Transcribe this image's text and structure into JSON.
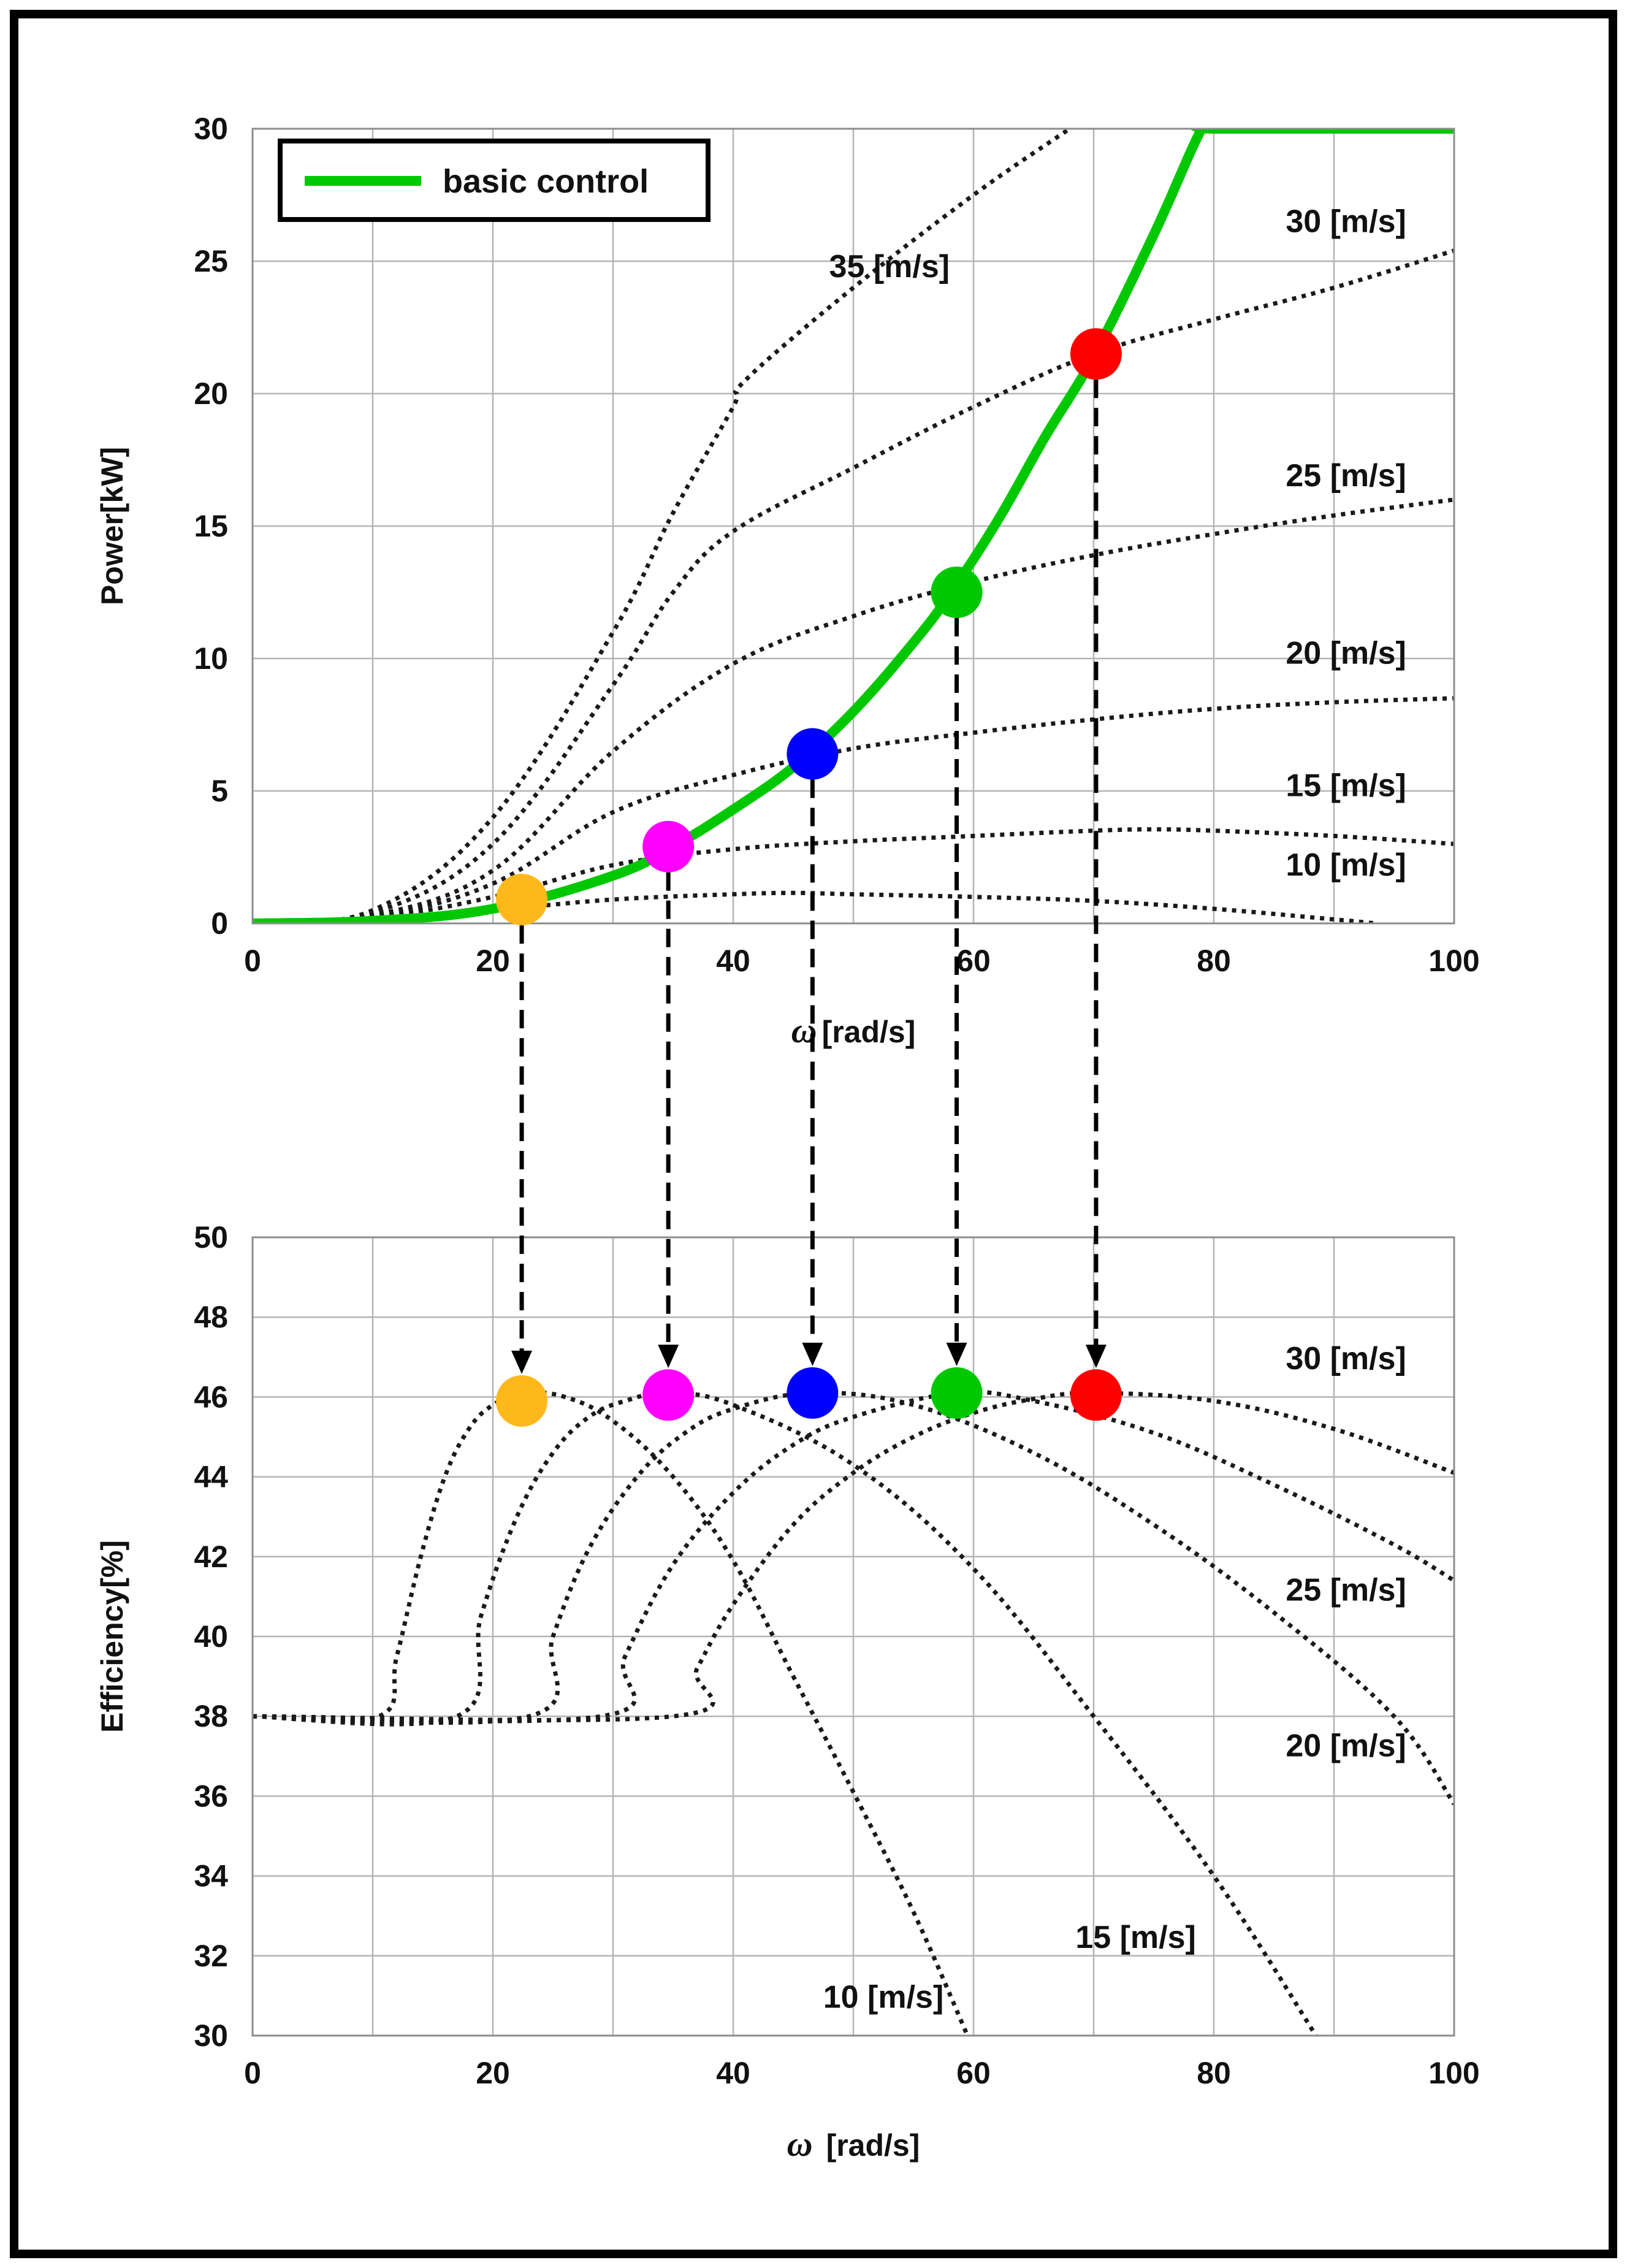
{
  "chart_data": [
    {
      "type": "line",
      "id": "power",
      "xlabel": "[rad/s]",
      "xlabel_symbol": "ω",
      "ylabel": "Power[kW]",
      "xlim": [
        0,
        100
      ],
      "ylim": [
        0,
        30
      ],
      "x_ticks": [
        "0",
        "20",
        "40",
        "60",
        "80",
        "100"
      ],
      "y_ticks": [
        "0",
        "5",
        "10",
        "15",
        "20",
        "25",
        "30"
      ],
      "legend": {
        "position": "top-left",
        "entries": [
          "basic control"
        ]
      },
      "series": [
        {
          "name": "basic control",
          "style": "solid",
          "color": "#00c800",
          "x": [
            0,
            10,
            20,
            30,
            35,
            40,
            45,
            50,
            55,
            58,
            62,
            66,
            70,
            75,
            79,
            80,
            100
          ],
          "y": [
            0,
            0.1,
            0.55,
            1.8,
            2.9,
            4.3,
            5.9,
            8.0,
            10.6,
            12.4,
            15.2,
            18.4,
            21.4,
            26,
            30,
            30,
            30
          ]
        },
        {
          "name": "10 [m/s]",
          "style": "dotted",
          "x": [
            0,
            10,
            20,
            30,
            40,
            45,
            50,
            60,
            70,
            80,
            90,
            93.5
          ],
          "y": [
            0,
            0.15,
            0.5,
            0.9,
            1.1,
            1.15,
            1.1,
            1.0,
            0.85,
            0.55,
            0.15,
            0
          ]
        },
        {
          "name": "15 [m/s]",
          "style": "dotted",
          "x": [
            0,
            10,
            20,
            30,
            40,
            50,
            60,
            70,
            75,
            80,
            90,
            100
          ],
          "y": [
            0,
            0.2,
            1.0,
            2.2,
            2.8,
            3.1,
            3.3,
            3.5,
            3.55,
            3.5,
            3.3,
            3.0
          ]
        },
        {
          "name": "20 [m/s]",
          "style": "dotted",
          "x": [
            0,
            10,
            20,
            30,
            40,
            50,
            60,
            70,
            80,
            90,
            100
          ],
          "y": [
            0,
            0.25,
            1.5,
            4.2,
            5.6,
            6.6,
            7.2,
            7.7,
            8.1,
            8.35,
            8.5
          ]
        },
        {
          "name": "25 [m/s]",
          "style": "dotted",
          "x": [
            0,
            10,
            20,
            30,
            40,
            50,
            60,
            70,
            80,
            90,
            100
          ],
          "y": [
            0,
            0.3,
            2.0,
            6.5,
            9.8,
            11.6,
            12.9,
            13.9,
            14.7,
            15.4,
            16.0
          ]
        },
        {
          "name": "30 [m/s]",
          "style": "dotted",
          "x": [
            0,
            10,
            20,
            30,
            35,
            40,
            50,
            60,
            70,
            80,
            90,
            100
          ],
          "y": [
            0,
            0.4,
            3.0,
            9.0,
            12.5,
            14.8,
            17.2,
            19.5,
            21.5,
            22.8,
            24.0,
            25.4
          ]
        },
        {
          "name": "35 [m/s]",
          "style": "dotted",
          "x": [
            0,
            10,
            20,
            30,
            35,
            40,
            41,
            50,
            60,
            68
          ],
          "y": [
            0,
            0.5,
            4.0,
            11.0,
            15.5,
            19.5,
            20.5,
            24.0,
            27.5,
            30
          ]
        }
      ],
      "markers": [
        {
          "x": 22.4,
          "y": 0.9,
          "color": "#ffb81c"
        },
        {
          "x": 34.6,
          "y": 2.9,
          "color": "#ff00ff"
        },
        {
          "x": 46.6,
          "y": 6.4,
          "color": "#0000ff"
        },
        {
          "x": 58.6,
          "y": 12.5,
          "color": "#00c800"
        },
        {
          "x": 70.2,
          "y": 21.5,
          "color": "#ff0000"
        }
      ],
      "annotations": [
        {
          "text": "35 [m/s]",
          "x": 53,
          "y": 24.4
        },
        {
          "text": "30 [m/s]",
          "x": 91,
          "y": 26.1
        },
        {
          "text": "25 [m/s]",
          "x": 91,
          "y": 16.5
        },
        {
          "text": "20 [m/s]",
          "x": 91,
          "y": 9.8
        },
        {
          "text": "15 [m/s]",
          "x": 91,
          "y": 4.8
        },
        {
          "text": "10 [m/s]",
          "x": 91,
          "y": 1.8
        }
      ]
    },
    {
      "type": "line",
      "id": "efficiency",
      "xlabel": "[rad/s]",
      "xlabel_symbol": "ω",
      "ylabel": "Efficiency[%]",
      "xlim": [
        0,
        100
      ],
      "ylim": [
        30,
        50
      ],
      "x_ticks": [
        "0",
        "20",
        "40",
        "60",
        "80",
        "100"
      ],
      "y_ticks": [
        "30",
        "32",
        "34",
        "36",
        "38",
        "40",
        "42",
        "44",
        "46",
        "48",
        "50"
      ],
      "series": [
        {
          "name": "10 [m/s]",
          "style": "dotted",
          "x": [
            0,
            10.5,
            12,
            14,
            16,
            18,
            20,
            22.5,
            26,
            30,
            35,
            40,
            45,
            50,
            55,
            59.5
          ],
          "y": [
            38,
            38,
            39.5,
            42,
            44,
            45.2,
            45.8,
            46.1,
            46.0,
            45.4,
            44.0,
            41.9,
            39.0,
            36.1,
            33.1,
            30
          ]
        },
        {
          "name": "15 [m/s]",
          "style": "dotted",
          "x": [
            0,
            17,
            19,
            22,
            25,
            28,
            31,
            34.6,
            40,
            50,
            60,
            70,
            80,
            88.5
          ],
          "y": [
            38,
            38,
            40.5,
            43,
            44.6,
            45.5,
            45.9,
            46.1,
            45.8,
            44.3,
            41.7,
            38.0,
            34.0,
            30
          ]
        },
        {
          "name": "20 [m/s]",
          "style": "dotted",
          "x": [
            0,
            23,
            25,
            28,
            32,
            36,
            40,
            46.6,
            55,
            65,
            75,
            85,
            95,
            100
          ],
          "y": [
            38,
            38,
            40,
            42.2,
            44,
            45.1,
            45.7,
            46.1,
            45.8,
            44.6,
            42.8,
            40.6,
            38.0,
            35.8
          ]
        },
        {
          "name": "25 [m/s]",
          "style": "dotted",
          "x": [
            0,
            29,
            31,
            35,
            40,
            45,
            50,
            58.6,
            65,
            75,
            85,
            95,
            100
          ],
          "y": [
            38,
            38,
            39.5,
            41.8,
            43.6,
            44.8,
            45.5,
            46.1,
            45.9,
            45.1,
            43.8,
            42.3,
            41.4
          ]
        },
        {
          "name": "30 [m/s]",
          "style": "dotted",
          "x": [
            0,
            35,
            37,
            40,
            45,
            50,
            55,
            60,
            65,
            70.2,
            80,
            90,
            100
          ],
          "y": [
            38,
            38,
            39.2,
            40.8,
            42.8,
            44.1,
            45.0,
            45.6,
            45.95,
            46.1,
            45.9,
            45.2,
            44.1
          ]
        }
      ],
      "markers": [
        {
          "x": 22.4,
          "y": 45.9,
          "color": "#ffb81c"
        },
        {
          "x": 34.6,
          "y": 46.05,
          "color": "#ff00ff"
        },
        {
          "x": 46.6,
          "y": 46.1,
          "color": "#0000ff"
        },
        {
          "x": 58.6,
          "y": 46.1,
          "color": "#00c800"
        },
        {
          "x": 70.2,
          "y": 46.05,
          "color": "#ff0000"
        }
      ],
      "annotations": [
        {
          "text": "30 [m/s]",
          "x": 91,
          "y": 46.7
        },
        {
          "text": "25 [m/s]",
          "x": 91,
          "y": 40.9
        },
        {
          "text": "20 [m/s]",
          "x": 91,
          "y": 37.0
        },
        {
          "text": "15 [m/s]",
          "x": 73.5,
          "y": 32.2
        },
        {
          "text": "10 [m/s]",
          "x": 52.5,
          "y": 30.7
        }
      ]
    }
  ]
}
